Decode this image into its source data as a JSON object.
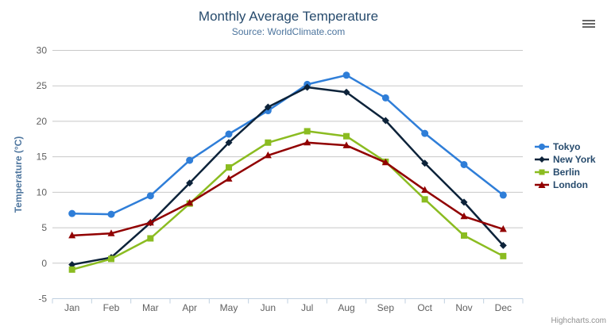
{
  "chart_data": {
    "type": "line",
    "title": "Monthly Average Temperature",
    "subtitle": "Source: WorldClimate.com",
    "xlabel": "",
    "ylabel": "Temperature (°C)",
    "categories": [
      "Jan",
      "Feb",
      "Mar",
      "Apr",
      "May",
      "Jun",
      "Jul",
      "Aug",
      "Sep",
      "Oct",
      "Nov",
      "Dec"
    ],
    "series": [
      {
        "name": "Tokyo",
        "color": "#2f7ed8",
        "marker": "circle",
        "values": [
          7.0,
          6.9,
          9.5,
          14.5,
          18.2,
          21.5,
          25.2,
          26.5,
          23.3,
          18.3,
          13.9,
          9.6
        ]
      },
      {
        "name": "New York",
        "color": "#0d233a",
        "marker": "diamond",
        "values": [
          -0.2,
          0.8,
          5.7,
          11.3,
          17.0,
          22.0,
          24.8,
          24.1,
          20.1,
          14.1,
          8.6,
          2.5
        ]
      },
      {
        "name": "Berlin",
        "color": "#8bbc21",
        "marker": "square",
        "values": [
          -0.9,
          0.6,
          3.5,
          8.4,
          13.5,
          17.0,
          18.6,
          17.9,
          14.3,
          9.0,
          3.9,
          1.0
        ]
      },
      {
        "name": "London",
        "color": "#910000",
        "marker": "triangle",
        "values": [
          3.9,
          4.2,
          5.7,
          8.5,
          11.9,
          15.2,
          17.0,
          16.6,
          14.2,
          10.3,
          6.6,
          4.8
        ]
      }
    ],
    "ylim": [
      -5,
      30
    ],
    "ytick_interval": 5,
    "grid": true,
    "legend_position": "right"
  },
  "credits": "Highcharts.com",
  "export_menu_icon": "hamburger-menu-icon",
  "colors": {
    "title": "#274b6d",
    "subtitle": "#4d759e",
    "axis_label": "#606060",
    "axis_title": "#4d759e",
    "grid_line": "#c8c8c8",
    "axis_line": "#c0d0e0",
    "legend_text": "#274b6d",
    "credits_text": "#909090"
  }
}
